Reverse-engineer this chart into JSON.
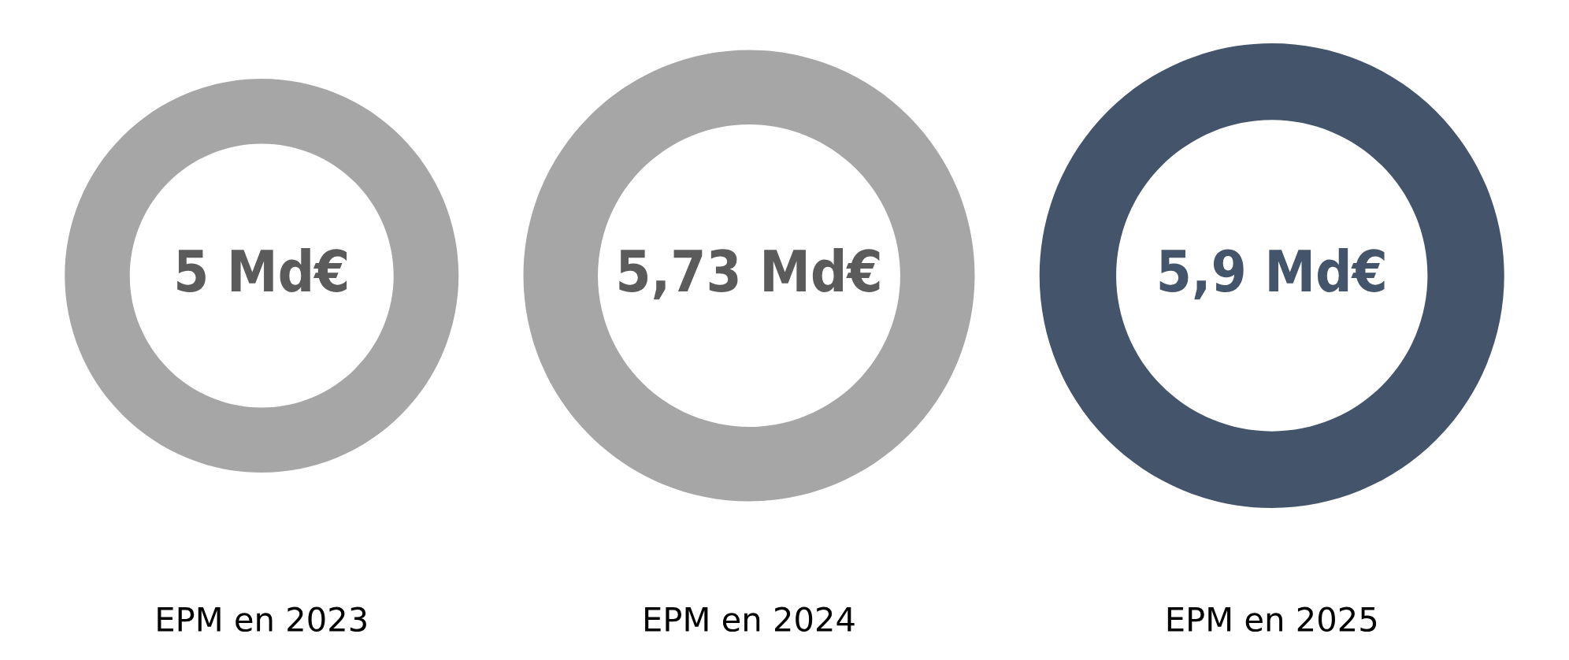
{
  "chart_data": {
    "type": "other",
    "categories": [
      "EPM en 2023",
      "EPM en 2024",
      "EPM en 2025"
    ],
    "values": [
      5,
      5.73,
      5.9
    ],
    "value_labels": [
      "5 Md€",
      "5,73 Md€",
      "5,9 Md€"
    ],
    "colors": [
      "#a6a6a6",
      "#a6a6a6",
      "#44546a"
    ]
  }
}
